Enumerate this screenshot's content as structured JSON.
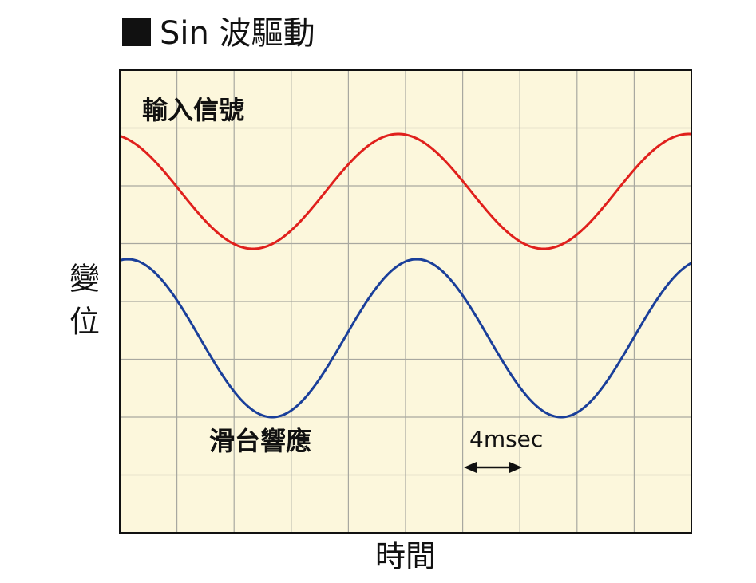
{
  "title": "Sin 波驅動",
  "labels": {
    "input": "輸入信號",
    "response": "滑台響應",
    "y_axis": [
      "變",
      "位"
    ],
    "x_axis": "時間",
    "scale": "4msec"
  }
}
